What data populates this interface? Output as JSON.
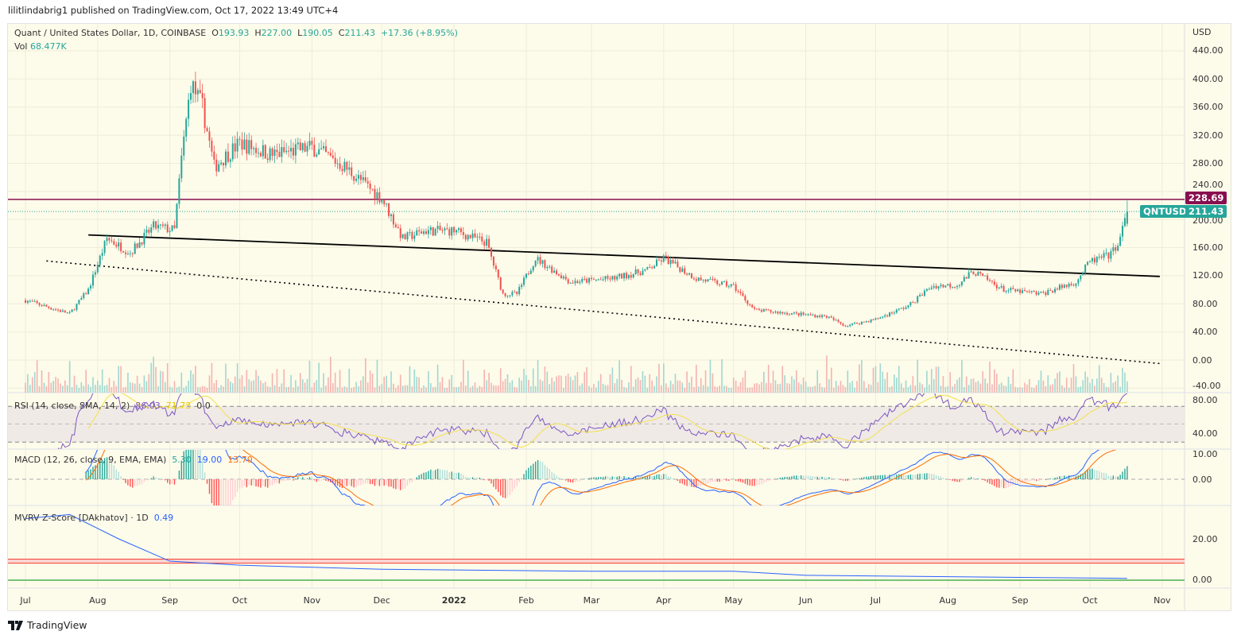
{
  "published": "lilitlindabrig1 published on TradingView.com, Oct 17, 2022 13:49 UTC+4",
  "legend": {
    "symbol": "Quant / United States Dollar, 1D, COINBASE",
    "o_label": "O",
    "o": "193.93",
    "h_label": "H",
    "h": "227.00",
    "l_label": "L",
    "l": "190.05",
    "c_label": "C",
    "c": "211.43",
    "change": "+17.36 (+8.95%)",
    "vol_label": "Vol",
    "vol": "68.477K"
  },
  "rsi_legend": {
    "label": "RSI (14, close, SMA, 14, 2)",
    "rsi": "86.03",
    "sma": "71.73",
    "extra": "0  0"
  },
  "macd_legend": {
    "label": "MACD (12, 26, close, 9, EMA, EMA)",
    "hist": "5.30",
    "macd": "19.00",
    "signal": "13.70"
  },
  "mvrv_legend": {
    "label": "MVRV Z-Score [DAkhatov] · 1D",
    "value": "0.49"
  },
  "currency": "USD",
  "price_ticks": [
    "440.00",
    "400.00",
    "360.00",
    "320.00",
    "280.00",
    "240.00",
    "200.00",
    "160.00",
    "120.00",
    "80.00",
    "40.00",
    "0.00",
    "-40.00"
  ],
  "rsi_ticks": [
    "80.00",
    "40.00"
  ],
  "macd_ticks": [
    "10.00",
    "0.00"
  ],
  "mvrv_ticks": [
    "20.00",
    "0.00"
  ],
  "x_labels": [
    "Jul",
    "Aug",
    "Sep",
    "Oct",
    "Nov",
    "Dec",
    "2022",
    "Feb",
    "Mar",
    "Apr",
    "May",
    "Jun",
    "Jul",
    "Aug",
    "Sep",
    "Oct",
    "Nov"
  ],
  "resistance_tag": "228.69",
  "symbol_tag": "QNTUSD",
  "price_tag": "211.43",
  "brand": "TradingView",
  "colors": {
    "up": "#26a69a",
    "down": "#ef5350",
    "resistance": "#880e4f",
    "background": "#fdfbea"
  },
  "chart_data": {
    "type": "candlestick",
    "title": "Quant / United States Dollar, 1D, COINBASE",
    "ylim": [
      -40,
      450
    ],
    "grid": true,
    "approx_closes": [
      [
        "2021-07-01",
        85
      ],
      [
        "2021-07-20",
        66
      ],
      [
        "2021-07-28",
        100
      ],
      [
        "2021-08-05",
        173
      ],
      [
        "2021-08-15",
        153
      ],
      [
        "2021-08-25",
        190
      ],
      [
        "2021-09-03",
        185
      ],
      [
        "2021-09-06",
        286
      ],
      [
        "2021-09-10",
        394
      ],
      [
        "2021-09-15",
        360
      ],
      [
        "2021-09-20",
        275
      ],
      [
        "2021-10-01",
        309
      ],
      [
        "2021-10-15",
        292
      ],
      [
        "2021-11-01",
        303
      ],
      [
        "2021-11-15",
        275
      ],
      [
        "2021-12-01",
        230
      ],
      [
        "2021-12-10",
        173
      ],
      [
        "2021-12-20",
        184
      ],
      [
        "2022-01-01",
        184
      ],
      [
        "2022-01-15",
        167
      ],
      [
        "2022-01-22",
        94
      ],
      [
        "2022-01-28",
        94
      ],
      [
        "2022-02-05",
        145
      ],
      [
        "2022-02-20",
        111
      ],
      [
        "2022-03-10",
        116
      ],
      [
        "2022-03-25",
        128
      ],
      [
        "2022-04-01",
        145
      ],
      [
        "2022-04-15",
        116
      ],
      [
        "2022-05-01",
        105
      ],
      [
        "2022-05-10",
        71
      ],
      [
        "2022-05-20",
        68
      ],
      [
        "2022-06-10",
        62
      ],
      [
        "2022-06-18",
        49
      ],
      [
        "2022-07-01",
        58
      ],
      [
        "2022-07-15",
        77
      ],
      [
        "2022-07-25",
        105
      ],
      [
        "2022-08-05",
        107
      ],
      [
        "2022-08-12",
        126
      ],
      [
        "2022-08-25",
        100
      ],
      [
        "2022-09-10",
        94
      ],
      [
        "2022-09-25",
        111
      ],
      [
        "2022-10-01",
        140
      ],
      [
        "2022-10-10",
        150
      ],
      [
        "2022-10-14",
        173
      ],
      [
        "2022-10-17",
        211.43
      ]
    ],
    "last_candle": {
      "open": 193.93,
      "high": 227.0,
      "low": 190.05,
      "close": 211.43
    },
    "horizontal_line": 228.69,
    "trendline_solid": [
      [
        "2021-07-28",
        178
      ],
      [
        "2022-10-31",
        119
      ]
    ],
    "trendline_dotted": [
      [
        "2021-07-10",
        141
      ],
      [
        "2022-10-31",
        -5
      ]
    ],
    "mvrv": [
      [
        "2021-07-01",
        30
      ],
      [
        "2021-07-20",
        32
      ],
      [
        "2021-08-10",
        20
      ],
      [
        "2021-09-01",
        9
      ],
      [
        "2021-10-01",
        7
      ],
      [
        "2021-12-01",
        5
      ],
      [
        "2022-03-01",
        4
      ],
      [
        "2022-05-01",
        4
      ],
      [
        "2022-06-01",
        2
      ],
      [
        "2022-10-17",
        0.49
      ]
    ],
    "mvrv_band": [
      8,
      10
    ]
  }
}
